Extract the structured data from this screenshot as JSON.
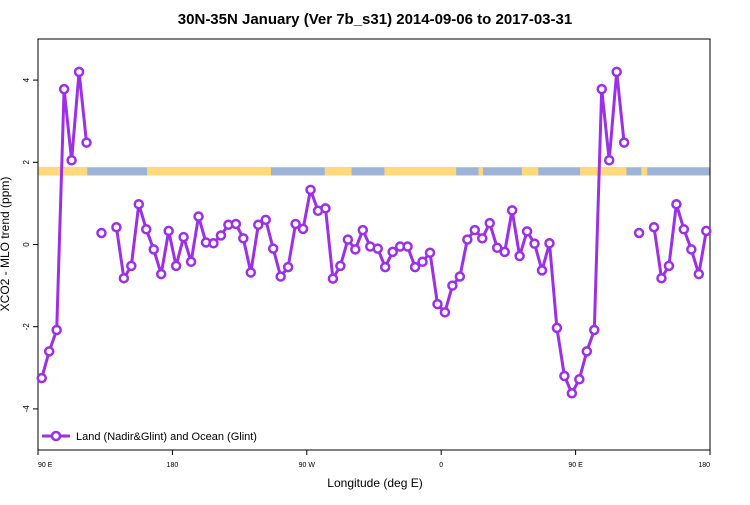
{
  "chart_data": {
    "type": "line",
    "title": "30N-35N January (Ver 7b_s31)   2014-09-06 to 2017-03-31",
    "xlabel": "Longitude (deg E)",
    "ylabel": "XCO2 - MLO trend (ppm)",
    "x_tick_labels": [
      "90 E",
      "180",
      "90 W",
      "0",
      "90 E",
      "180"
    ],
    "x_tick_values": [
      90,
      180,
      270,
      360,
      450,
      540
    ],
    "xlim": [
      90,
      540
    ],
    "y_tick_labels": [
      "-4",
      "-2",
      "0",
      "2",
      "4"
    ],
    "y_tick_values": [
      -4,
      -2,
      0,
      2,
      4
    ],
    "ylim": [
      -5,
      5
    ],
    "grid": false,
    "legend_position": "bottom-left",
    "series": [
      {
        "name": "Land (Nadir&Glint) and Ocean (Glint)",
        "color": "#9b30e8",
        "x": [
          92.5,
          97.5,
          102.5,
          107.5,
          112.5,
          117.5,
          122.5,
          127.5,
          132.5,
          137.5,
          142.5,
          147.5,
          152.5,
          157.5,
          162.5,
          167.5,
          172.5,
          177.5,
          182.5,
          187.5,
          192.5,
          197.5,
          202.5,
          207.5,
          212.5,
          217.5,
          222.5,
          227.5,
          232.5,
          237.5,
          242.5,
          247.5,
          252.5,
          257.5,
          262.5,
          267.5,
          272.5,
          277.5,
          282.5,
          287.5,
          292.5,
          297.5,
          302.5,
          307.5,
          312.5,
          317.5,
          322.5,
          327.5,
          332.5,
          337.5,
          342.5,
          347.5,
          352.5,
          357.5,
          362.5,
          367.5,
          372.5,
          377.5,
          382.5,
          387.5,
          392.5,
          397.5,
          402.5,
          407.5,
          412.5,
          417.5,
          422.5,
          427.5,
          432.5,
          437.5,
          442.5,
          447.5,
          452.5,
          457.5,
          462.5,
          467.5,
          472.5,
          477.5,
          482.5,
          487.5,
          492.5,
          497.5,
          502.5,
          507.5,
          512.5,
          517.5,
          522.5,
          527.5,
          532.5,
          537.5
        ],
        "y": [
          -3.25,
          -2.6,
          -2.08,
          3.78,
          2.05,
          4.2,
          2.48,
          null,
          0.28,
          null,
          0.42,
          -0.82,
          -0.52,
          0.98,
          0.37,
          -0.12,
          -0.72,
          0.33,
          -0.52,
          0.18,
          -0.42,
          0.68,
          0.05,
          0.03,
          0.22,
          0.48,
          0.5,
          0.15,
          -0.68,
          0.48,
          0.6,
          -0.1,
          -0.78,
          -0.55,
          0.5,
          0.38,
          1.33,
          0.82,
          0.88,
          -0.83,
          -0.52,
          0.12,
          -0.12,
          0.35,
          -0.05,
          -0.1,
          -0.55,
          -0.18,
          -0.05,
          -0.05,
          -0.55,
          -0.42,
          -0.2,
          -1.45,
          -1.65,
          -1.0,
          -0.78,
          0.12,
          0.35,
          0.15,
          0.52,
          -0.08,
          -0.18,
          0.83,
          -0.28,
          0.32,
          0.02,
          -0.63,
          0.03,
          -2.03,
          -3.2,
          -3.62,
          -3.28,
          -2.6,
          -2.08,
          3.78,
          2.05,
          4.2,
          2.48,
          null,
          0.28,
          null,
          0.42,
          -0.82,
          -0.52,
          0.98,
          0.37,
          -0.12,
          -0.72,
          0.33
        ]
      }
    ],
    "surface_band": {
      "y_range": [
        1.68,
        1.88
      ],
      "ocean_color": "#9db3d8",
      "land_color": "#ffd97a",
      "land_segments": [
        [
          90,
          123
        ],
        [
          163,
          246
        ],
        [
          282,
          300
        ],
        [
          322,
          370
        ],
        [
          385,
          388
        ],
        [
          414,
          425
        ],
        [
          453,
          484
        ],
        [
          494,
          498
        ]
      ]
    }
  }
}
